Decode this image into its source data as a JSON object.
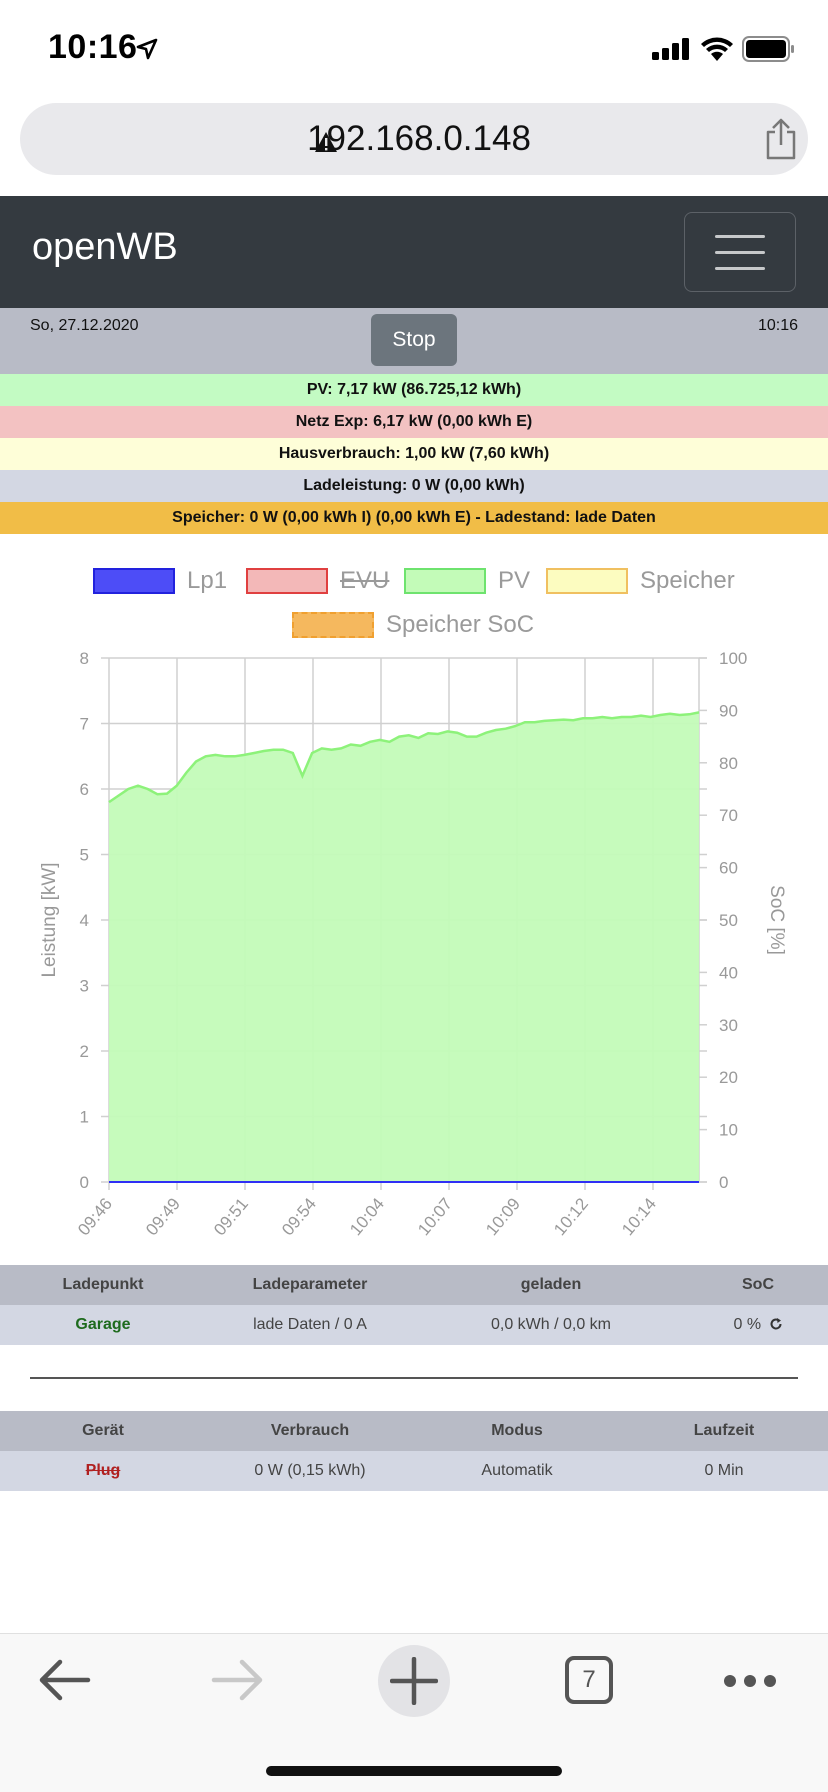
{
  "status_bar": {
    "time": "10:16"
  },
  "browser": {
    "url": "192.168.0.148",
    "tab_count": "7"
  },
  "navbar": {
    "brand": "openWB"
  },
  "info": {
    "date": "So, 27.12.2020",
    "time": "10:16",
    "stop_label": "Stop"
  },
  "stats": {
    "pv": "PV: 7,17 kW (86.725,12 kWh)",
    "netz": "Netz Exp: 6,17 kW (0,00 kWh E)",
    "haus": "Hausverbrauch: 1,00 kW (7,60 kWh)",
    "lade": "Ladeleistung: 0 W (0,00 kWh)",
    "speicher": "Speicher: 0 W (0,00 kWh I) (0,00 kWh E) - Ladestand: lade Daten"
  },
  "colors": {
    "pv_row": "#c3fbc3",
    "netz_row": "#f3c2c2",
    "haus_row": "#fefed8",
    "lade_row": "#d3d7e3",
    "speicher_row": "#f1bd47",
    "pv_fill": "#c3fbb8",
    "pv_line": "#8df27a",
    "lp1": "#2f2ff5"
  },
  "chart_data": {
    "type": "area",
    "legend": [
      {
        "name": "Lp1",
        "color": "#4d4df7",
        "border": "#2222dd",
        "hidden": false
      },
      {
        "name": "EVU",
        "color": "#f3b8b8",
        "border": "#e04040",
        "hidden": true
      },
      {
        "name": "PV",
        "color": "#c3fbb8",
        "border": "#6ee36e",
        "hidden": false
      },
      {
        "name": "Speicher",
        "color": "#fcfcc0",
        "border": "#f0c060",
        "hidden": false
      },
      {
        "name": "Speicher SoC",
        "color": "#f5b85e",
        "border": "#f5b85e",
        "hidden": false,
        "dashed": true
      }
    ],
    "x_ticks": [
      "09:46",
      "09:49",
      "09:51",
      "09:54",
      "10:04",
      "10:07",
      "10:09",
      "10:12",
      "10:14"
    ],
    "y_left": {
      "label": "Leistung [kW]",
      "ticks": [
        "0",
        "1",
        "2",
        "3",
        "4",
        "5",
        "6",
        "7",
        "8"
      ],
      "min": 0,
      "max": 8
    },
    "y_right": {
      "label": "SoC [%]",
      "ticks": [
        "0",
        "10",
        "20",
        "30",
        "40",
        "50",
        "60",
        "70",
        "80",
        "90",
        "100"
      ],
      "min": 0,
      "max": 100
    },
    "series": [
      {
        "name": "PV",
        "values": [
          5.8,
          5.9,
          6.0,
          6.05,
          6.0,
          5.92,
          5.93,
          6.05,
          6.25,
          6.42,
          6.5,
          6.52,
          6.5,
          6.5,
          6.52,
          6.55,
          6.58,
          6.6,
          6.6,
          6.55,
          6.2,
          6.55,
          6.62,
          6.6,
          6.62,
          6.68,
          6.66,
          6.72,
          6.75,
          6.72,
          6.8,
          6.82,
          6.78,
          6.85,
          6.84,
          6.88,
          6.86,
          6.8,
          6.8,
          6.86,
          6.9,
          6.92,
          6.96,
          7.02,
          7.02,
          7.04,
          7.05,
          7.06,
          7.05,
          7.08,
          7.08,
          7.1,
          7.08,
          7.1,
          7.1,
          7.12,
          7.1,
          7.13,
          7.15,
          7.13,
          7.14,
          7.17
        ]
      },
      {
        "name": "Lp1",
        "values": [
          0,
          0
        ]
      }
    ]
  },
  "ladepunkt_table": {
    "headers": [
      "Ladepunkt",
      "Ladeparameter",
      "geladen",
      "SoC"
    ],
    "row": {
      "name": "Garage",
      "param": "lade Daten / 0 A",
      "geladen": "0,0 kWh / 0,0 km",
      "soc": "0 %"
    }
  },
  "geraet_table": {
    "headers": [
      "Gerät",
      "Verbrauch",
      "Modus",
      "Laufzeit"
    ],
    "row": {
      "name": "Plug",
      "verbrauch": "0 W (0,15 kWh)",
      "modus": "Automatik",
      "laufzeit": "0 Min"
    }
  }
}
